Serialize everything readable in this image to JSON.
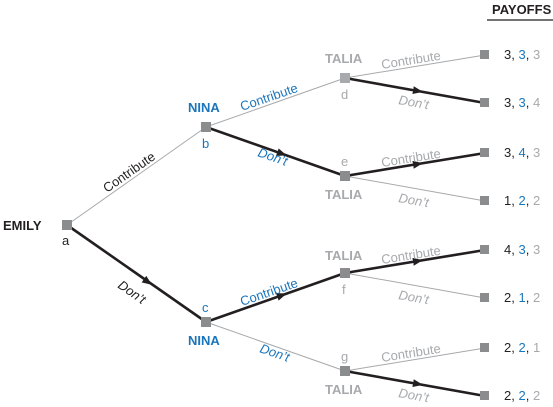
{
  "header": {
    "payoffs_title": "PAYOFFS"
  },
  "colors": {
    "dark": "#231f20",
    "gray": "#a7a9ac",
    "node": "#8a8c8e",
    "blue": "#1b75bb",
    "thin_gray": "#a7a9ac"
  },
  "players": {
    "emily": "EMILY",
    "nina": "NINA",
    "talia": "TALIA"
  },
  "nodes": {
    "a": "a",
    "b": "b",
    "c": "c",
    "d": "d",
    "e": "e",
    "f": "f",
    "g": "g"
  },
  "actions": {
    "contribute": "Contribute",
    "dont": "Don’t"
  },
  "payoffs": [
    {
      "emily": "3",
      "nina": "3",
      "talia": "3"
    },
    {
      "emily": "3",
      "nina": "3",
      "talia": "4"
    },
    {
      "emily": "3",
      "nina": "4",
      "talia": "3"
    },
    {
      "emily": "1",
      "nina": "2",
      "talia": "2"
    },
    {
      "emily": "4",
      "nina": "3",
      "talia": "3"
    },
    {
      "emily": "2",
      "nina": "1",
      "talia": "2"
    },
    {
      "emily": "2",
      "nina": "2",
      "talia": "1"
    },
    {
      "emily": "2",
      "nina": "2",
      "talia": "2"
    }
  ]
}
